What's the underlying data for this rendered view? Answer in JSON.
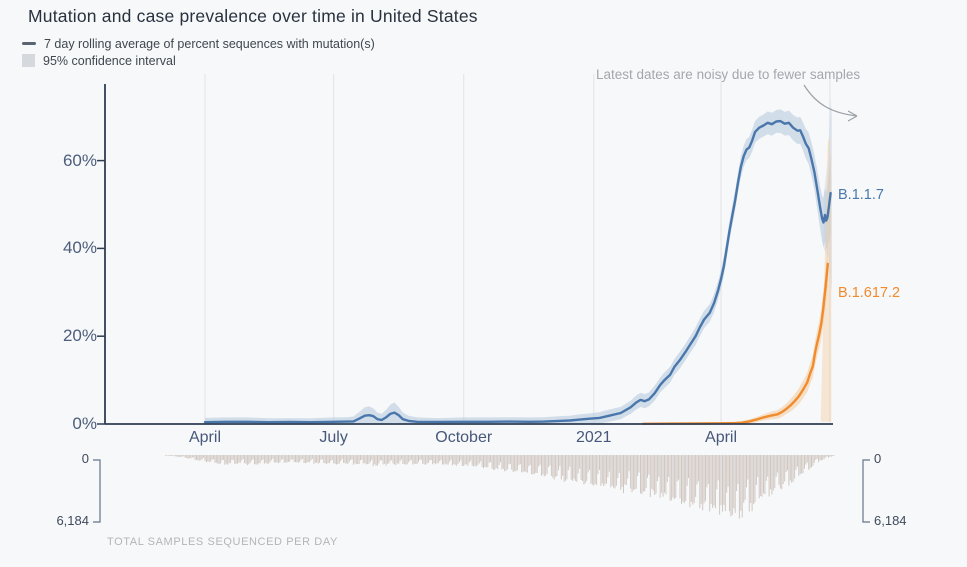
{
  "title": "Mutation and case prevalence over time in United States",
  "legend": [
    {
      "icon": "line-swatch",
      "label": "7 day rolling average of percent sequences with mutation(s)",
      "color": "#5b6570"
    },
    {
      "icon": "ci-swatch",
      "label": "95% confidence interval",
      "color": "#d5d8dd"
    }
  ],
  "annotation": {
    "text": "Latest dates are noisy due to fewer samples",
    "arrow_color": "#9aa0a6"
  },
  "colors": {
    "background": "#f7f8f9",
    "axis": "#2f3e54",
    "gridline": "#e2e3e7",
    "tick_label": "#4d5d7b",
    "bars": "#d0c7c1",
    "bracket": "#64748a"
  },
  "chart_data": [
    {
      "type": "line",
      "title": "Mutation and case prevalence over time in United States",
      "x_unit": "days since 2020-04-01",
      "x_axis": {
        "ticks": [
          {
            "d": 0,
            "label": "April"
          },
          {
            "d": 91,
            "label": "July"
          },
          {
            "d": 183,
            "label": "October"
          },
          {
            "d": 275,
            "label": "2021"
          },
          {
            "d": 365,
            "label": "April"
          }
        ],
        "extra_gridline_d": 442,
        "domain_d": [
          0,
          442.5
        ]
      },
      "y_axis": {
        "unit": "percent",
        "range": [
          0,
          77
        ],
        "ticks": [
          {
            "v": 0,
            "label": "0%"
          },
          {
            "v": 20,
            "label": "20%"
          },
          {
            "v": 40,
            "label": "40%"
          },
          {
            "v": 60,
            "label": "60%"
          }
        ]
      },
      "series": [
        {
          "name": "B.1.1.7",
          "color": "#4a77ab",
          "band_color": "#b9cbdf",
          "points_d_pct_ci": [
            [
              0,
              0.4,
              1.0
            ],
            [
              15,
              0.5,
              1.0
            ],
            [
              30,
              0.5,
              1.0
            ],
            [
              45,
              0.4,
              0.9
            ],
            [
              60,
              0.45,
              0.9
            ],
            [
              75,
              0.4,
              0.9
            ],
            [
              91,
              0.5,
              1.0
            ],
            [
              100,
              0.55,
              1.0
            ],
            [
              105,
              0.6,
              1.1
            ],
            [
              109,
              1.2,
              1.5
            ],
            [
              113,
              1.9,
              1.9
            ],
            [
              116,
              2.0,
              2.0
            ],
            [
              119,
              1.8,
              1.8
            ],
            [
              122,
              1.1,
              1.5
            ],
            [
              125,
              0.9,
              1.4
            ],
            [
              128,
              1.5,
              1.7
            ],
            [
              131,
              2.3,
              2.1
            ],
            [
              134,
              2.6,
              2.3
            ],
            [
              137,
              2.0,
              1.9
            ],
            [
              140,
              1.1,
              1.5
            ],
            [
              144,
              0.7,
              1.2
            ],
            [
              150,
              0.5,
              1.0
            ],
            [
              165,
              0.45,
              0.9
            ],
            [
              183,
              0.5,
              1.0
            ],
            [
              200,
              0.5,
              1.0
            ],
            [
              215,
              0.55,
              1.0
            ],
            [
              230,
              0.5,
              1.0
            ],
            [
              240,
              0.55,
              1.0
            ],
            [
              251,
              0.7,
              1.1
            ],
            [
              258,
              0.8,
              1.1
            ],
            [
              265,
              1.0,
              1.2
            ],
            [
              272,
              1.2,
              1.2
            ],
            [
              279,
              1.4,
              1.3
            ],
            [
              286,
              1.9,
              1.4
            ],
            [
              294,
              2.5,
              1.4
            ],
            [
              301,
              3.8,
              1.5
            ],
            [
              305,
              4.9,
              1.6
            ],
            [
              308,
              5.5,
              1.6
            ],
            [
              311,
              5.2,
              1.6
            ],
            [
              314,
              5.6,
              1.6
            ],
            [
              318,
              7.0,
              1.7
            ],
            [
              322,
              8.9,
              1.7
            ],
            [
              325,
              10,
              1.8
            ],
            [
              329,
              11.2,
              1.8
            ],
            [
              332,
              13,
              1.8
            ],
            [
              336,
              14.6,
              1.9
            ],
            [
              340,
              16.5,
              1.9
            ],
            [
              343,
              18,
              1.9
            ],
            [
              347,
              20,
              2.0
            ],
            [
              350,
              22,
              2.0
            ],
            [
              353,
              23.8,
              2.0
            ],
            [
              357,
              25.3,
              2.0
            ],
            [
              360,
              27.5,
              2.1
            ],
            [
              363,
              30.5,
              2.1
            ],
            [
              365,
              33,
              2.1
            ],
            [
              367,
              36,
              2.2
            ],
            [
              369,
              40,
              2.2
            ],
            [
              371,
              44,
              2.2
            ],
            [
              373,
              47.5,
              2.3
            ],
            [
              375,
              51,
              2.3
            ],
            [
              377,
              55,
              2.3
            ],
            [
              379,
              58.5,
              2.4
            ],
            [
              381,
              61,
              2.4
            ],
            [
              383,
              62.5,
              2.4
            ],
            [
              385,
              63,
              2.4
            ],
            [
              387,
              64.5,
              2.5
            ],
            [
              389,
              66.5,
              2.5
            ],
            [
              392,
              67.5,
              2.5
            ],
            [
              395,
              68,
              2.5
            ],
            [
              398,
              68.6,
              2.6
            ],
            [
              401,
              68.3,
              2.6
            ],
            [
              404,
              68.9,
              2.6
            ],
            [
              407,
              69,
              2.7
            ],
            [
              410,
              68.4,
              2.7
            ],
            [
              413,
              68.6,
              2.8
            ],
            [
              416,
              67.5,
              2.9
            ],
            [
              419,
              66.8,
              3.0
            ],
            [
              421,
              66.9,
              3.1
            ],
            [
              423,
              65.5,
              3.2
            ],
            [
              425,
              63.8,
              3.4
            ],
            [
              427,
              62.8,
              3.6
            ],
            [
              429,
              60.3,
              3.8
            ],
            [
              431,
              57.5,
              4.0
            ],
            [
              433,
              53.5,
              4.4
            ],
            [
              435,
              49.5,
              4.8
            ],
            [
              436.5,
              46.8,
              5.2
            ],
            [
              437.5,
              45.9,
              5.6
            ],
            [
              438.5,
              47.6,
              6.0
            ],
            [
              439.3,
              46.3,
              6.5
            ],
            [
              440.2,
              47,
              7.0
            ],
            [
              441.3,
              49.5,
              8.0
            ],
            [
              442.5,
              52.6,
              9.0
            ]
          ],
          "end_fan_d_pct": [
            [
              437.5,
              52
            ],
            [
              440.5,
              60
            ],
            [
              442.5,
              74
            ],
            [
              443.5,
              70
            ],
            [
              443.5,
              30
            ],
            [
              441,
              38
            ],
            [
              437.5,
              40
            ]
          ],
          "end_fan_opacity": 0.35
        },
        {
          "name": "B.1.617.2",
          "color": "#f08b2e",
          "band_color": "#f3cfa4",
          "points_d_pct_ci": [
            [
              310,
              0.05,
              0.15
            ],
            [
              330,
              0.1,
              0.2
            ],
            [
              350,
              0.12,
              0.25
            ],
            [
              365,
              0.15,
              0.3
            ],
            [
              375,
              0.2,
              0.35
            ],
            [
              380,
              0.3,
              0.4
            ],
            [
              385,
              0.6,
              0.5
            ],
            [
              390,
              1.0,
              0.6
            ],
            [
              395,
              1.5,
              0.7
            ],
            [
              400,
              1.9,
              0.85
            ],
            [
              405,
              2.2,
              1.0
            ],
            [
              408,
              2.7,
              1.1
            ],
            [
              411,
              3.4,
              1.2
            ],
            [
              414,
              4.2,
              1.4
            ],
            [
              417,
              5.2,
              1.6
            ],
            [
              420,
              6.3,
              1.8
            ],
            [
              423,
              7.8,
              2.0
            ],
            [
              426,
              9.5,
              2.2
            ],
            [
              428,
              11.5,
              2.4
            ],
            [
              430,
              13.2,
              2.6
            ],
            [
              431.5,
              16.3,
              2.8
            ],
            [
              433,
              18.5,
              3.0
            ],
            [
              434.5,
              20.5,
              3.2
            ],
            [
              436,
              23,
              3.5
            ],
            [
              437.2,
              26,
              3.8
            ],
            [
              438.2,
              29,
              4.1
            ],
            [
              439,
              31.5,
              4.4
            ],
            [
              439.8,
              34,
              4.7
            ],
            [
              440.5,
              36.5,
              5.0
            ]
          ],
          "end_fan_d_pct": [
            [
              435.5,
              0.5
            ],
            [
              438.5,
              40
            ],
            [
              440.5,
              64
            ],
            [
              442,
              66
            ],
            [
              443,
              55
            ],
            [
              443,
              0.5
            ]
          ],
          "end_fan_opacity": 0.45
        }
      ]
    },
    {
      "type": "bar",
      "title": "TOTAL SAMPLES SEQUENCED PER DAY",
      "x_unit": "days since 2020-04-01",
      "y_axis": {
        "min_label": "0",
        "max_label": "6,184",
        "max_value": 6184
      },
      "anchors_d_samples": [
        [
          -35,
          20
        ],
        [
          -28,
          60
        ],
        [
          -21,
          150
        ],
        [
          -14,
          300
        ],
        [
          -7,
          500
        ],
        [
          0,
          700
        ],
        [
          7,
          850
        ],
        [
          14,
          950
        ],
        [
          21,
          900
        ],
        [
          30,
          950
        ],
        [
          40,
          900
        ],
        [
          50,
          850
        ],
        [
          60,
          820
        ],
        [
          70,
          860
        ],
        [
          80,
          900
        ],
        [
          91,
          950
        ],
        [
          100,
          900
        ],
        [
          110,
          950
        ],
        [
          120,
          1050
        ],
        [
          130,
          1000
        ],
        [
          140,
          950
        ],
        [
          150,
          900
        ],
        [
          160,
          950
        ],
        [
          170,
          1000
        ],
        [
          183,
          1100
        ],
        [
          193,
          1250
        ],
        [
          203,
          1450
        ],
        [
          213,
          1600
        ],
        [
          223,
          1800
        ],
        [
          233,
          2000
        ],
        [
          243,
          2200
        ],
        [
          253,
          2500
        ],
        [
          263,
          2800
        ],
        [
          271,
          3100
        ],
        [
          280,
          3300
        ],
        [
          288,
          3500
        ],
        [
          296,
          3600
        ],
        [
          304,
          3700
        ],
        [
          312,
          3900
        ],
        [
          320,
          4100
        ],
        [
          328,
          4400
        ],
        [
          336,
          4700
        ],
        [
          344,
          5100
        ],
        [
          352,
          5400
        ],
        [
          360,
          5700
        ],
        [
          368,
          5950
        ],
        [
          377,
          6184
        ],
        [
          384,
          5600
        ],
        [
          392,
          4800
        ],
        [
          400,
          4000
        ],
        [
          408,
          3300
        ],
        [
          415,
          2800
        ],
        [
          422,
          2000
        ],
        [
          428,
          1300
        ],
        [
          432,
          900
        ],
        [
          436,
          550
        ],
        [
          440,
          300
        ],
        [
          443,
          150
        ],
        [
          445,
          60
        ]
      ]
    }
  ]
}
